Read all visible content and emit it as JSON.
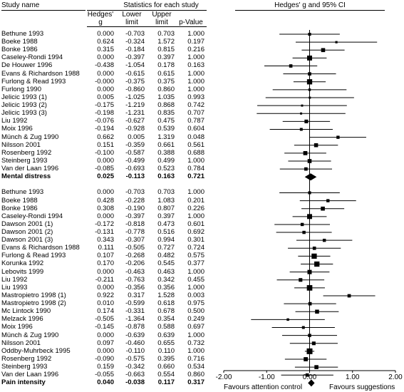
{
  "headers": {
    "study_name": "Study name",
    "stats_title": "Statistics for each study",
    "plot_title": "Hedges' g and 95% CI",
    "col_g_line1": "Hedges'",
    "col_g_line2": "g",
    "col_lower_line1": "Lower",
    "col_lower_line2": "limit",
    "col_upper_line1": "Upper",
    "col_upper_line2": "limit",
    "col_p": "p-Value"
  },
  "rows": [
    {
      "name": "Bethune 1993",
      "g": "0.000",
      "lower": "-0.703",
      "upper": "0.703",
      "p": "1.000"
    },
    {
      "name": "Boeke 1988",
      "g": "0.624",
      "lower": "-0.324",
      "upper": "1.572",
      "p": "0.197"
    },
    {
      "name": "Bonke 1986",
      "g": "0.315",
      "lower": "-0.184",
      "upper": "0.815",
      "p": "0.216"
    },
    {
      "name": "Caseley-Rondi 1994",
      "g": "0.000",
      "lower": "-0.397",
      "upper": "0.397",
      "p": "1.000"
    },
    {
      "name": "De Houwer 1996",
      "g": "-0.438",
      "lower": "-1.054",
      "upper": "0.178",
      "p": "0.163"
    },
    {
      "name": "Evans & Richardson 1988",
      "g": "0.000",
      "lower": "-0.615",
      "upper": "0.615",
      "p": "1.000"
    },
    {
      "name": "Furlong & Read 1993",
      "g": "-0.000",
      "lower": "-0.375",
      "upper": "0.375",
      "p": "1.000"
    },
    {
      "name": "Furlong 1990",
      "g": "0.000",
      "lower": "-0.860",
      "upper": "0.860",
      "p": "1.000"
    },
    {
      "name": "Jelicic 1993 (1)",
      "g": "0.005",
      "lower": "-1.025",
      "upper": "1.035",
      "p": "0.993"
    },
    {
      "name": "Jelicic 1993 (2)",
      "g": "-0.175",
      "lower": "-1.219",
      "upper": "0.868",
      "p": "0.742"
    },
    {
      "name": "Jelicic 1993 (3)",
      "g": "-0.198",
      "lower": "-1.231",
      "upper": "0.835",
      "p": "0.707"
    },
    {
      "name": "Liu 1992",
      "g": "-0.076",
      "lower": "-0.627",
      "upper": "0.475",
      "p": "0.787"
    },
    {
      "name": "Moix 1996",
      "g": "-0.194",
      "lower": "-0.928",
      "upper": "0.539",
      "p": "0.604"
    },
    {
      "name": "Münch & Zug 1990",
      "g": "0.662",
      "lower": "0.005",
      "upper": "1.319",
      "p": "0.048"
    },
    {
      "name": "Nilsson 2001",
      "g": "0.151",
      "lower": "-0.359",
      "upper": "0.661",
      "p": "0.561"
    },
    {
      "name": "Rosenberg 1992",
      "g": "-0.100",
      "lower": "-0.587",
      "upper": "0.388",
      "p": "0.688"
    },
    {
      "name": "Steinberg 1993",
      "g": "0.000",
      "lower": "-0.499",
      "upper": "0.499",
      "p": "1.000"
    },
    {
      "name": "Van der Laan 1996",
      "g": "-0.085",
      "lower": "-0.693",
      "upper": "0.523",
      "p": "0.784"
    },
    {
      "name": "Mental distress",
      "g": "0.025",
      "lower": "-0.113",
      "upper": "0.163",
      "p": "0.721",
      "summary": true
    },
    {
      "gap": true
    },
    {
      "name": "Bethune 1993",
      "g": "0.000",
      "lower": "-0.703",
      "upper": "0.703",
      "p": "1.000"
    },
    {
      "name": "Boeke 1988",
      "g": "0.428",
      "lower": "-0.228",
      "upper": "1.083",
      "p": "0.201"
    },
    {
      "name": "Bonke 1986",
      "g": "0.308",
      "lower": "-0.190",
      "upper": "0.807",
      "p": "0.226"
    },
    {
      "name": "Caseley-Rondi 1994",
      "g": "0.000",
      "lower": "-0.397",
      "upper": "0.397",
      "p": "1.000"
    },
    {
      "name": "Dawson 2001 (1)",
      "g": "-0.172",
      "lower": "-0.818",
      "upper": "0.473",
      "p": "0.601"
    },
    {
      "name": "Dawson 2001 (2)",
      "g": "-0.131",
      "lower": "-0.778",
      "upper": "0.516",
      "p": "0.692"
    },
    {
      "name": "Dawson 2001 (3)",
      "g": "0.343",
      "lower": "-0.307",
      "upper": "0.994",
      "p": "0.301"
    },
    {
      "name": "Evans & Richardson 1988",
      "g": "0.111",
      "lower": "-0.505",
      "upper": "0.727",
      "p": "0.724"
    },
    {
      "name": "Furlong & Read 1993",
      "g": "0.107",
      "lower": "-0.268",
      "upper": "0.482",
      "p": "0.575"
    },
    {
      "name": "Korunka 1992",
      "g": "0.170",
      "lower": "-0.206",
      "upper": "0.545",
      "p": "0.377"
    },
    {
      "name": "Lebovits 1999",
      "g": "0.000",
      "lower": "-0.463",
      "upper": "0.463",
      "p": "1.000"
    },
    {
      "name": "Liu 1992",
      "g": "-0.211",
      "lower": "-0.763",
      "upper": "0.342",
      "p": "0.455"
    },
    {
      "name": "Liu 1993",
      "g": "0.000",
      "lower": "-0.356",
      "upper": "0.356",
      "p": "1.000"
    },
    {
      "name": "Mastropietro 1998 (1)",
      "g": "0.922",
      "lower": "0.317",
      "upper": "1.528",
      "p": "0.003"
    },
    {
      "name": "Mastropietro 1998 (2)",
      "g": "0.010",
      "lower": "-0.599",
      "upper": "0.618",
      "p": "0.975"
    },
    {
      "name": "Mc Lintock 1990",
      "g": "0.174",
      "lower": "-0.331",
      "upper": "0.678",
      "p": "0.500"
    },
    {
      "name": "Melzack 1996",
      "g": "-0.505",
      "lower": "-1.364",
      "upper": "0.354",
      "p": "0.249"
    },
    {
      "name": "Moix 1996",
      "g": "-0.145",
      "lower": "-0.878",
      "upper": "0.588",
      "p": "0.697"
    },
    {
      "name": "Münch & Zug 1990",
      "g": "0.000",
      "lower": "-0.639",
      "upper": "0.639",
      "p": "1.000"
    },
    {
      "name": "Nilsson 2001",
      "g": "0.097",
      "lower": "-0.460",
      "upper": "0.655",
      "p": "0.732"
    },
    {
      "name": "Oddby-Muhrbeck 1995",
      "g": "0.000",
      "lower": "-0.110",
      "upper": "0.110",
      "p": "1.000"
    },
    {
      "name": "Rosenberg 1992",
      "g": "-0.090",
      "lower": "-0.575",
      "upper": "0.395",
      "p": "0.716"
    },
    {
      "name": "Steinberg 1993",
      "g": "0.159",
      "lower": "-0.342",
      "upper": "0.660",
      "p": "0.534"
    },
    {
      "name": "Van der Laan 1996",
      "g": "-0.055",
      "lower": "-0.663",
      "upper": "0.554",
      "p": "0.860"
    },
    {
      "name": "Pain intensity",
      "g": "0.040",
      "lower": "-0.038",
      "upper": "0.117",
      "p": "0.317",
      "summary": true
    }
  ],
  "chart_data": {
    "type": "forest",
    "title": "Hedges' g and 95% CI",
    "xlim": [
      -2.0,
      2.0
    ],
    "ticks": [
      "-2.00",
      "-1.00",
      "0.00",
      "1.00",
      "2.00"
    ],
    "tick_values": [
      -2,
      -1,
      0,
      1,
      2
    ],
    "left_label": "Favours attention control",
    "right_label": "Favours  suggestions",
    "reference_line": 0,
    "clip_range": [
      -1.4,
      1.64
    ],
    "studies_in_plot": "rows"
  },
  "colors": {
    "ink": "#000000",
    "background": "#ffffff"
  }
}
